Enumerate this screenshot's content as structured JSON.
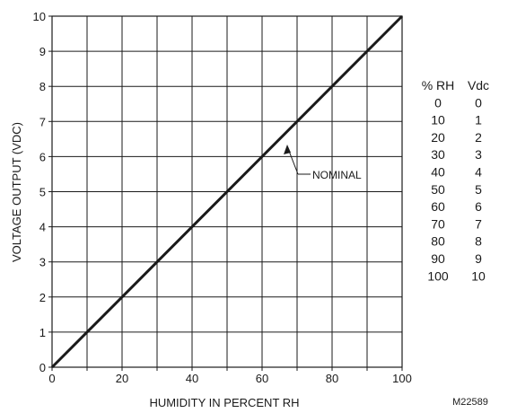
{
  "chart_data": {
    "type": "line",
    "xlabel": "HUMIDITY IN PERCENT RH",
    "ylabel": "VOLTAGE OUTPUT (VDC)",
    "xlim": [
      0,
      100
    ],
    "ylim": [
      0,
      10
    ],
    "x_ticks": [
      "0",
      "20",
      "40",
      "60",
      "80",
      "100"
    ],
    "y_ticks": [
      "0",
      "1",
      "2",
      "3",
      "4",
      "5",
      "6",
      "7",
      "8",
      "9",
      "10"
    ],
    "grid": true,
    "series": [
      {
        "name": "",
        "x": [
          0,
          100
        ],
        "y": [
          0,
          10
        ]
      }
    ],
    "annotation": {
      "text": "NOMINAL",
      "x": 69,
      "y": 6.9
    },
    "table": {
      "headers": [
        "% RH",
        "Vdc"
      ],
      "rows": [
        [
          "0",
          "0"
        ],
        [
          "10",
          "1"
        ],
        [
          "20",
          "2"
        ],
        [
          "30",
          "3"
        ],
        [
          "40",
          "4"
        ],
        [
          "50",
          "5"
        ],
        [
          "60",
          "6"
        ],
        [
          "70",
          "7"
        ],
        [
          "80",
          "8"
        ],
        [
          "90",
          "9"
        ],
        [
          "100",
          "10"
        ]
      ]
    },
    "figure_id": "M22589"
  },
  "colors": {
    "line": "#1a1a1a",
    "grid": "#1a1a1a",
    "text": "#1a1a1a"
  }
}
